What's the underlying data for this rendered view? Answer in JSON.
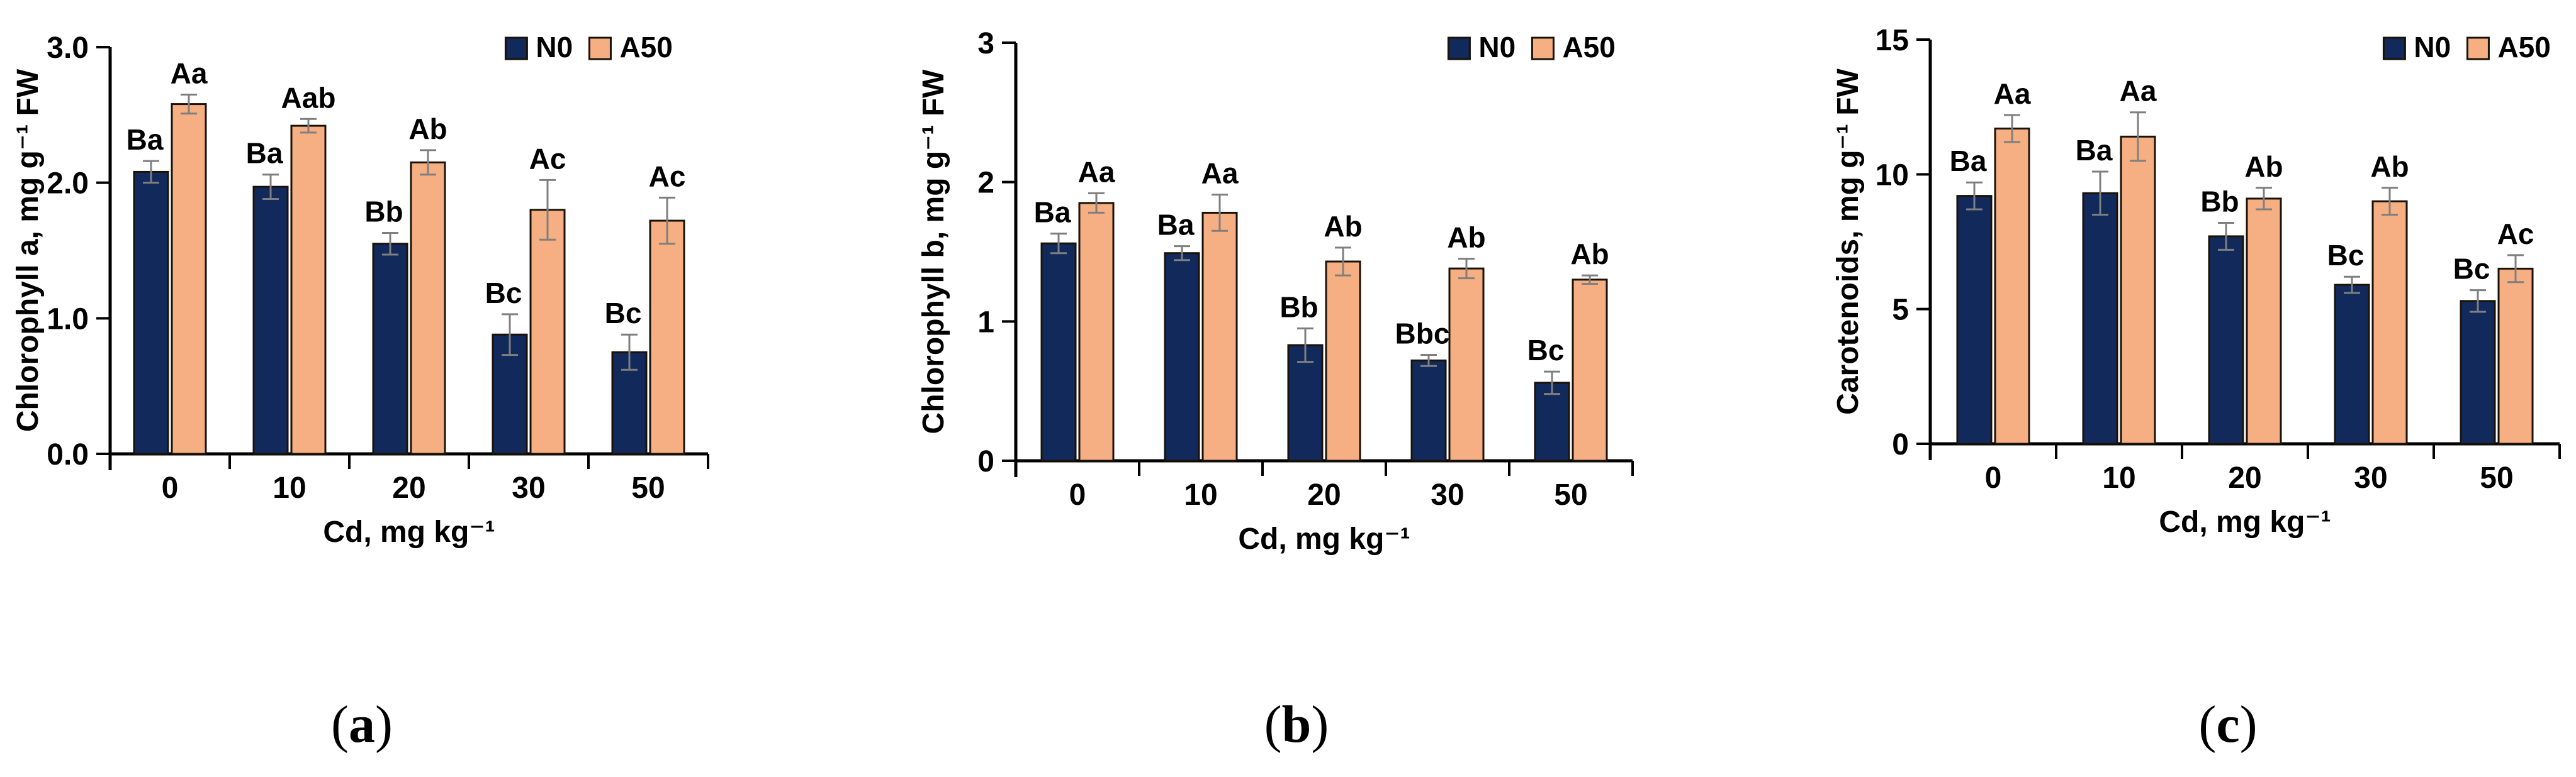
{
  "figure": {
    "background": "#FFFFFF",
    "captions": [
      {
        "open": "(",
        "letter": "a",
        "close": ")"
      },
      {
        "open": "(",
        "letter": "b",
        "close": ")"
      },
      {
        "open": "(",
        "letter": "c",
        "close": ")"
      }
    ]
  },
  "colors": {
    "n0_series": "#12295B",
    "a50_series": "#F5AF82",
    "bar_outline": "#1A1208",
    "error_bar": "#7F7F7F",
    "axis": "#000000",
    "text": "#000000"
  },
  "chart_data": [
    {
      "id": "a",
      "type": "bar",
      "title": "",
      "ylabel": "Chlorophyll a, mg g⁻¹ FW",
      "xlabel": "Cd, mg kg⁻¹",
      "ylim": [
        0,
        3
      ],
      "grid": false,
      "legend_position": "top-right",
      "yticks": [
        {
          "label": "0.0",
          "value": 0
        },
        {
          "label": "1.0",
          "value": 1
        },
        {
          "label": "2.0",
          "value": 2
        },
        {
          "label": "3.0",
          "value": 3
        }
      ],
      "categories": [
        "0",
        "10",
        "20",
        "30",
        "50"
      ],
      "series": [
        {
          "name": "N0",
          "color": "#12295B",
          "values": [
            2.08,
            1.97,
            1.55,
            0.88,
            0.75
          ],
          "errors": [
            0.08,
            0.09,
            0.08,
            0.15,
            0.13
          ],
          "sig_labels": [
            "Ba",
            "Ba",
            "Bb",
            "Bc",
            "Bc"
          ]
        },
        {
          "name": "A50",
          "color": "#F5AF82",
          "values": [
            2.58,
            2.42,
            2.15,
            1.8,
            1.72
          ],
          "errors": [
            0.07,
            0.05,
            0.09,
            0.22,
            0.17
          ],
          "sig_labels": [
            "Aa",
            "Aab",
            "Ab",
            "Ac",
            "Ac"
          ]
        }
      ]
    },
    {
      "id": "b",
      "type": "bar",
      "title": "",
      "ylabel": "Chlorophyll b, mg g⁻¹ FW",
      "xlabel": "Cd, mg kg⁻¹",
      "ylim": [
        0,
        3
      ],
      "grid": false,
      "legend_position": "top-right",
      "yticks": [
        {
          "label": "0",
          "value": 0
        },
        {
          "label": "1",
          "value": 1
        },
        {
          "label": "2",
          "value": 2
        },
        {
          "label": "3",
          "value": 3
        }
      ],
      "categories": [
        "0",
        "10",
        "20",
        "30",
        "50"
      ],
      "series": [
        {
          "name": "N0",
          "color": "#12295B",
          "values": [
            1.56,
            1.49,
            0.83,
            0.72,
            0.56
          ],
          "errors": [
            0.07,
            0.05,
            0.12,
            0.04,
            0.08
          ],
          "sig_labels": [
            "Ba",
            "Ba",
            "Bb",
            "Bbc",
            "Bc"
          ]
        },
        {
          "name": "A50",
          "color": "#F5AF82",
          "values": [
            1.85,
            1.78,
            1.43,
            1.38,
            1.3
          ],
          "errors": [
            0.07,
            0.13,
            0.1,
            0.07,
            0.03
          ],
          "sig_labels": [
            "Aa",
            "Aa",
            "Ab",
            "Ab",
            "Ab"
          ]
        }
      ]
    },
    {
      "id": "c",
      "type": "bar",
      "title": "",
      "ylabel": "Carotenoids, mg g⁻¹ FW",
      "xlabel": "Cd, mg kg⁻¹",
      "ylim": [
        0,
        15
      ],
      "grid": false,
      "legend_position": "top-right",
      "yticks": [
        {
          "label": "0",
          "value": 0
        },
        {
          "label": "5",
          "value": 5
        },
        {
          "label": "10",
          "value": 10
        },
        {
          "label": "15",
          "value": 15
        }
      ],
      "categories": [
        "0",
        "10",
        "20",
        "30",
        "50"
      ],
      "series": [
        {
          "name": "N0",
          "color": "#12295B",
          "values": [
            9.2,
            9.3,
            7.7,
            5.9,
            5.3
          ],
          "errors": [
            0.5,
            0.8,
            0.5,
            0.3,
            0.4
          ],
          "sig_labels": [
            "Ba",
            "Ba",
            "Bb",
            "Bc",
            "Bc"
          ]
        },
        {
          "name": "A50",
          "color": "#F5AF82",
          "values": [
            11.7,
            11.4,
            9.1,
            9.0,
            6.5
          ],
          "errors": [
            0.5,
            0.9,
            0.4,
            0.5,
            0.5
          ],
          "sig_labels": [
            "Aa",
            "Aa",
            "Ab",
            "Ab",
            "Ac"
          ]
        }
      ]
    }
  ]
}
